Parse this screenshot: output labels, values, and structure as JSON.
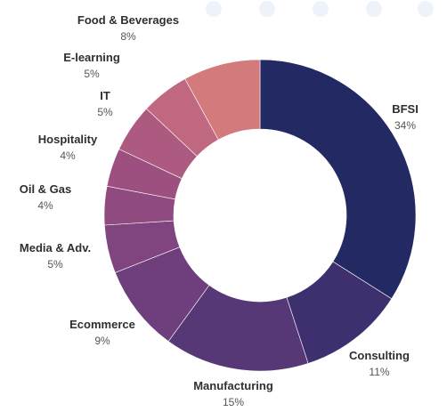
{
  "chart_data": {
    "type": "pie",
    "variant": "donut",
    "direction": "clockwise",
    "start": "12 o'clock",
    "slices": [
      {
        "label": "BFSI",
        "value": 34,
        "display": "34%",
        "color": "#232a63"
      },
      {
        "label": "Consulting",
        "value": 11,
        "display": "11%",
        "color": "#3e2f6f"
      },
      {
        "label": "Manufacturing",
        "value": 15,
        "display": "15%",
        "color": "#573876"
      },
      {
        "label": "Ecommerce",
        "value": 9,
        "display": "9%",
        "color": "#6e3f7c"
      },
      {
        "label": "Media & Adv.",
        "value": 5,
        "display": "5%",
        "color": "#80457f"
      },
      {
        "label": "Oil & Gas",
        "value": 4,
        "display": "4%",
        "color": "#8f4a80"
      },
      {
        "label": "Hospitality",
        "value": 4,
        "display": "4%",
        "color": "#9d507f"
      },
      {
        "label": "IT",
        "value": 5,
        "display": "5%",
        "color": "#ad5a80"
      },
      {
        "label": "E-learning",
        "value": 5,
        "display": "5%",
        "color": "#c06880"
      },
      {
        "label": "Food & Beverages",
        "value": 8,
        "display": "8%",
        "color": "#d37a7c"
      }
    ]
  }
}
